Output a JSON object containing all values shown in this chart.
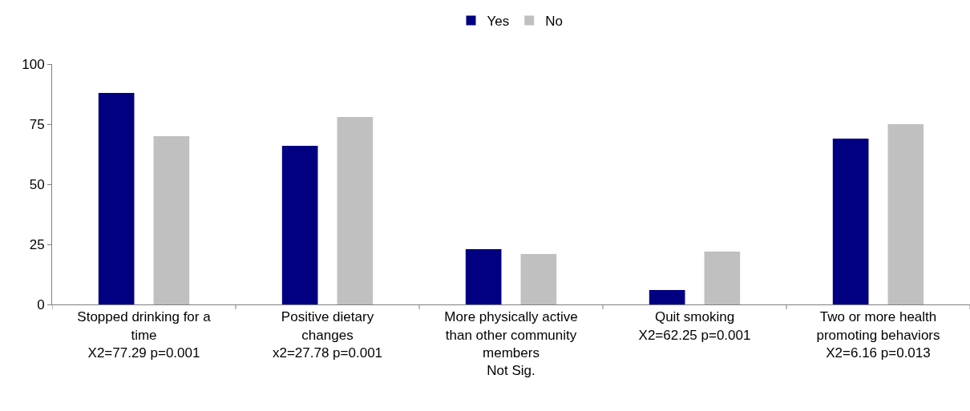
{
  "chart_data": {
    "type": "bar",
    "categories": [
      "Stopped drinking for a\ntime\nX2=77.29 p=0.001",
      "Positive dietary\nchanges\nx2=27.78 p=0.001",
      "More physically active\nthan other community\nmembers\nNot Sig.",
      "Quit smoking\nX2=62.25 p=0.001",
      "Two or more health\npromoting behaviors\nX2=6.16 p=0.013"
    ],
    "series": [
      {
        "name": "Yes",
        "color": "#000080",
        "values": [
          88,
          66,
          23,
          6,
          69
        ]
      },
      {
        "name": "No",
        "color": "#c0c0c0",
        "values": [
          70,
          78,
          21,
          22,
          75
        ]
      }
    ],
    "ylim": [
      0,
      100
    ],
    "yticks": [
      0,
      25,
      50,
      75,
      100
    ],
    "legend": "top"
  }
}
